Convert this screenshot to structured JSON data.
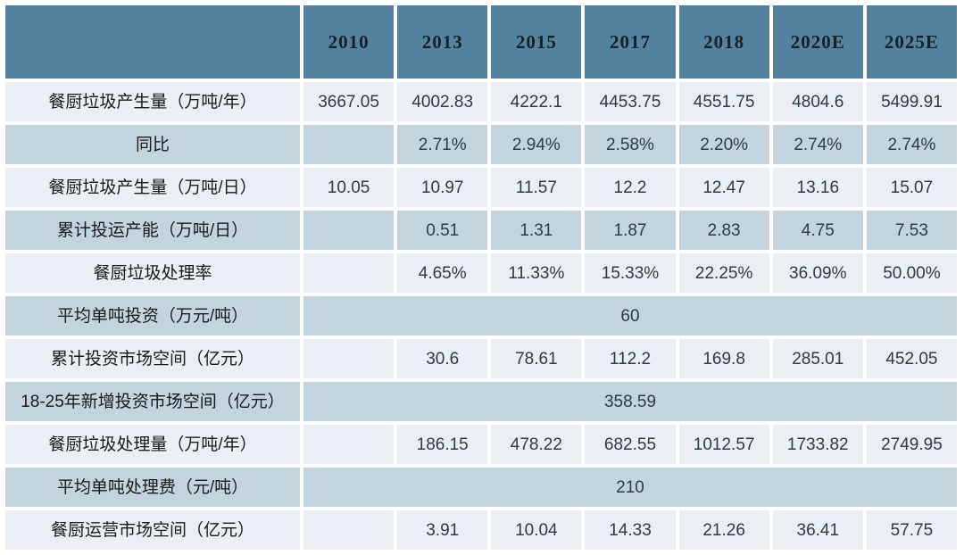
{
  "chart_data": {
    "type": "table",
    "columns": [
      "",
      "2010",
      "2013",
      "2015",
      "2017",
      "2018",
      "2020E",
      "2025E"
    ],
    "rows": [
      {
        "label": "餐厨垃圾产生量（万吨/年）",
        "values": [
          "3667.05",
          "4002.83",
          "4222.1",
          "4453.75",
          "4551.75",
          "4804.6",
          "5499.91"
        ]
      },
      {
        "label": "同比",
        "values": [
          "",
          "2.71%",
          "2.94%",
          "2.58%",
          "2.20%",
          "2.74%",
          "2.74%"
        ]
      },
      {
        "label": "餐厨垃圾产生量（万吨/日）",
        "values": [
          "10.05",
          "10.97",
          "11.57",
          "12.2",
          "12.47",
          "13.16",
          "15.07"
        ]
      },
      {
        "label": "累计投运产能（万吨/日）",
        "values": [
          "",
          "0.51",
          "1.31",
          "1.87",
          "2.83",
          "4.75",
          "7.53"
        ]
      },
      {
        "label": "餐厨垃圾处理率",
        "values": [
          "",
          "4.65%",
          "11.33%",
          "15.33%",
          "22.25%",
          "36.09%",
          "50.00%"
        ]
      },
      {
        "label": "平均单吨投资（万元/吨）",
        "merged_value": "60"
      },
      {
        "label": "累计投资市场空间（亿元）",
        "values": [
          "",
          "30.6",
          "78.61",
          "112.2",
          "169.8",
          "285.01",
          "452.05"
        ]
      },
      {
        "label": "18-25年新增投资市场空间（亿元）",
        "merged_value": "358.59"
      },
      {
        "label": "餐厨垃圾处理量（万吨/年）",
        "values": [
          "",
          "186.15",
          "478.22",
          "682.55",
          "1012.57",
          "1733.82",
          "2749.95"
        ]
      },
      {
        "label": "平均单吨处理费（元/吨）",
        "merged_value": "210"
      },
      {
        "label": "餐厨运营市场空间（亿元）",
        "values": [
          "",
          "3.91",
          "10.04",
          "14.33",
          "21.26",
          "36.41",
          "57.75"
        ]
      }
    ],
    "layout": {
      "legend": "none",
      "grid": "white 4px gaps between cells",
      "merged_value_rows_span": "all 7 year columns, value centered",
      "row_striping": "alternating light / medium blue starting light"
    }
  },
  "colors": {
    "header_bg": "#55829e",
    "header_text": "#14222c",
    "row_light_bg": "#e9eff4",
    "row_medium_bg": "#c3d4df",
    "gap": "#ffffff",
    "label_text": "#1a1a1a",
    "value_text": "#2b3b49"
  }
}
